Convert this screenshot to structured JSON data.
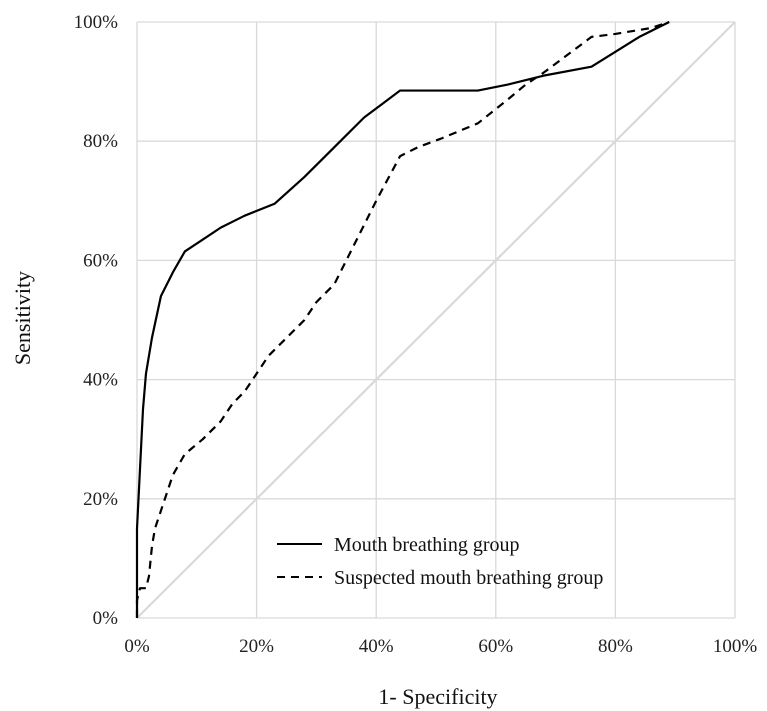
{
  "chart_data": {
    "type": "line",
    "title": "",
    "xlabel": "1- Specificity",
    "ylabel": "Sensitivity",
    "xlim": [
      0,
      100
    ],
    "ylim": [
      0,
      100
    ],
    "x_ticks": [
      "0%",
      "20%",
      "40%",
      "60%",
      "80%",
      "100%"
    ],
    "y_ticks": [
      "0%",
      "20%",
      "40%",
      "60%",
      "80%",
      "100%"
    ],
    "grid": true,
    "legend_position": "bottom-right",
    "reference_line": {
      "x": [
        0,
        100
      ],
      "y": [
        0,
        100
      ],
      "color": "#d9d9d9"
    },
    "series": [
      {
        "name": "Mouth breathing group",
        "style": "solid",
        "color": "#000000",
        "x": [
          0,
          0,
          0.5,
          1,
          1.5,
          2.5,
          4,
          6,
          8,
          11,
          14,
          18,
          23,
          28,
          33,
          38,
          44,
          50,
          57,
          62,
          68,
          76,
          80,
          84,
          89
        ],
        "y": [
          0,
          15,
          25,
          35,
          41,
          47,
          54,
          58,
          61.5,
          63.5,
          65.5,
          67.5,
          69.5,
          74,
          79,
          84,
          88.5,
          88.5,
          88.5,
          89.5,
          91,
          92.5,
          95,
          97.5,
          100
        ]
      },
      {
        "name": "Suspected mouth breathing group",
        "style": "dashed",
        "color": "#000000",
        "x": [
          0,
          0,
          0.5,
          1,
          1.5,
          2,
          2.5,
          3,
          4,
          5,
          6,
          8,
          11,
          14,
          16,
          18,
          20,
          22,
          25,
          28,
          30,
          33,
          35,
          37,
          40,
          44,
          47,
          51,
          57,
          62,
          65,
          68,
          72,
          76,
          80,
          86,
          89
        ],
        "y": [
          0,
          3,
          5,
          5,
          5,
          7,
          12,
          15,
          18,
          21,
          24,
          27.5,
          30,
          33,
          36,
          38,
          41,
          44,
          47,
          50,
          53,
          56,
          60,
          64,
          70,
          77.5,
          79,
          80.5,
          83,
          87,
          89.5,
          91.5,
          94.5,
          97.5,
          98,
          99,
          100
        ]
      }
    ]
  }
}
